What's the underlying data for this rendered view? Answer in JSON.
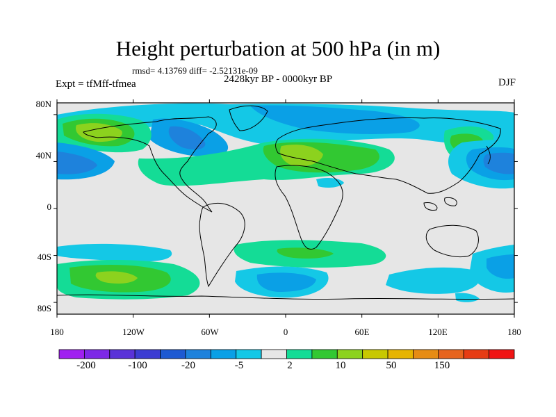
{
  "title": "Height perturbation at 500 hPa (in m)",
  "stats": "rmsd= 4.13769 diff= -2.52131e-09",
  "period": "2428kyr BP - 0000kyr BP",
  "experiment": "Expt = tfMff-tfmea",
  "season": "DJF",
  "lat_labels": [
    "80N",
    "40N",
    "0",
    "40S",
    "80S"
  ],
  "lon_labels": [
    "180",
    "120W",
    "60W",
    "0",
    "60E",
    "120E",
    "180"
  ],
  "colorbar": {
    "colors": [
      "#a020f0",
      "#7d28e6",
      "#5a32d8",
      "#3c3cd2",
      "#1e5ad2",
      "#1e82dc",
      "#0aa0e6",
      "#14c8e6",
      "#e6e6e6",
      "#14dc96",
      "#32c832",
      "#8cd21e",
      "#c8c800",
      "#e6b400",
      "#e68c14",
      "#e6641e",
      "#e63c14",
      "#f01414"
    ],
    "labels": [
      "-200",
      "-100",
      "-20",
      "-5",
      "2",
      "10",
      "50",
      "150"
    ]
  },
  "chart_data": {
    "type": "heatmap",
    "title": "Height perturbation at 500 hPa (in m)",
    "variable": "500 hPa geopotential height perturbation",
    "units": "m",
    "season": "DJF",
    "x_range": [
      -180,
      180
    ],
    "y_range": [
      -90,
      90
    ],
    "contour_levels": [
      -200,
      -100,
      -20,
      -5,
      2,
      10,
      50,
      150
    ],
    "features": [
      {
        "region": "North Pacific / Aleutian",
        "lon": -140,
        "lat": 55,
        "sign": "positive",
        "approx_value": 10
      },
      {
        "region": "Canada / North Atlantic",
        "lon": -70,
        "lat": 50,
        "sign": "negative",
        "approx_value": -5
      },
      {
        "region": "Arctic",
        "lon": 30,
        "lat": 75,
        "sign": "negative",
        "approx_value": -5
      },
      {
        "region": "Europe / Mediterranean",
        "lon": 20,
        "lat": 42,
        "sign": "positive",
        "approx_value": 10
      },
      {
        "region": "West Pacific",
        "lon": 165,
        "lat": 35,
        "sign": "negative",
        "approx_value": -5
      },
      {
        "region": "North-east Pacific",
        "lon": -170,
        "lat": 35,
        "sign": "negative",
        "approx_value": -5
      },
      {
        "region": "South Pacific",
        "lon": -125,
        "lat": -55,
        "sign": "positive",
        "approx_value": 10
      },
      {
        "region": "South Atlantic",
        "lon": 10,
        "lat": -40,
        "sign": "positive",
        "approx_value": 2
      },
      {
        "region": "Southern Ocean (Indian)",
        "lon": 0,
        "lat": -60,
        "sign": "negative",
        "approx_value": -5
      }
    ]
  }
}
